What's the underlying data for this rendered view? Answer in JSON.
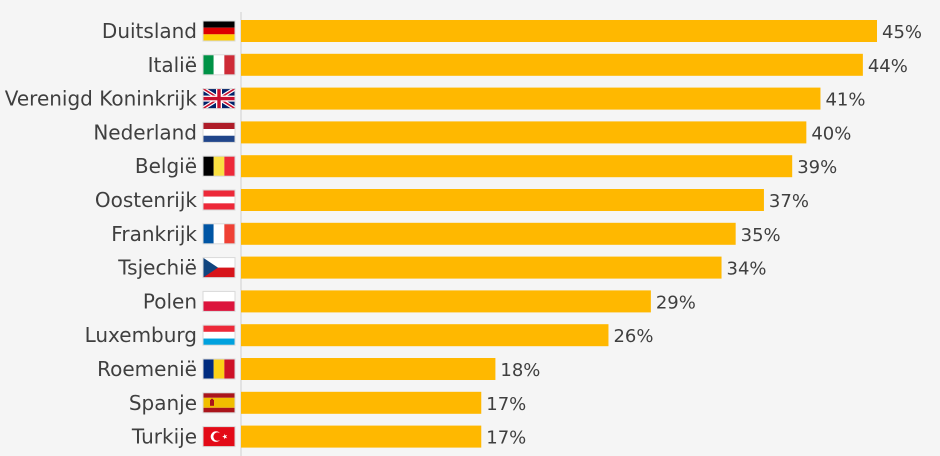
{
  "colors": {
    "background": "#f5f5f5",
    "bar": "#ffb800",
    "text": "#3f3f3f",
    "axis": "#cfcfcf"
  },
  "chart_data": {
    "type": "bar",
    "orientation": "horizontal",
    "categories": [
      "Duitsland",
      "Italië",
      "Verenigd Koninkrijk",
      "Nederland",
      "België",
      "Oostenrijk",
      "Frankrijk",
      "Tsjechië",
      "Polen",
      "Luxemburg",
      "Roemenië",
      "Spanje",
      "Turkije"
    ],
    "values": [
      45,
      44,
      41,
      40,
      39,
      37,
      35,
      34,
      29,
      26,
      18,
      17,
      17
    ],
    "value_labels": [
      "45%",
      "44%",
      "41%",
      "40%",
      "39%",
      "37%",
      "35%",
      "34%",
      "29%",
      "26%",
      "18%",
      "17%",
      "17%"
    ],
    "flag_icons": [
      "germany-flag-icon",
      "italy-flag-icon",
      "united-kingdom-flag-icon",
      "netherlands-flag-icon",
      "belgium-flag-icon",
      "austria-flag-icon",
      "france-flag-icon",
      "czech-republic-flag-icon",
      "poland-flag-icon",
      "luxembourg-flag-icon",
      "romania-flag-icon",
      "spain-flag-icon",
      "turkey-flag-icon"
    ],
    "grid": false,
    "legend": "none",
    "xlim": [
      0,
      45
    ]
  }
}
